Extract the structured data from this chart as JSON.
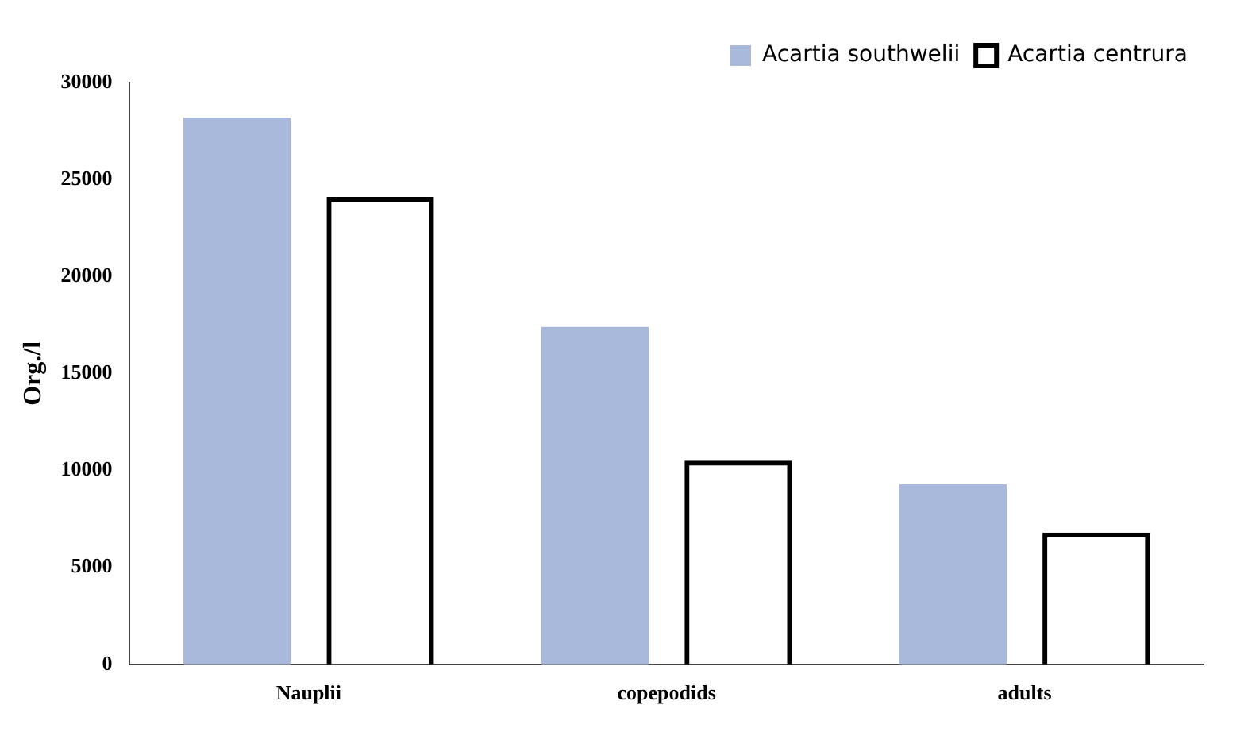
{
  "chart_data": {
    "type": "bar",
    "ylabel": "Org./l",
    "categories": [
      "Nauplii",
      "copepodids",
      "adults"
    ],
    "series": [
      {
        "name": "Acartia southwelii",
        "color": "#a9b9dc",
        "values": [
          28200,
          17400,
          9300
        ]
      },
      {
        "name": "Acartia centrura",
        "color": "#000000",
        "values": [
          24100,
          10500,
          6800
        ]
      }
    ],
    "ylim": [
      0,
      30000
    ],
    "yticks": [
      0,
      5000,
      10000,
      15000,
      20000,
      25000,
      30000
    ],
    "grid": false,
    "legend": "top right"
  }
}
